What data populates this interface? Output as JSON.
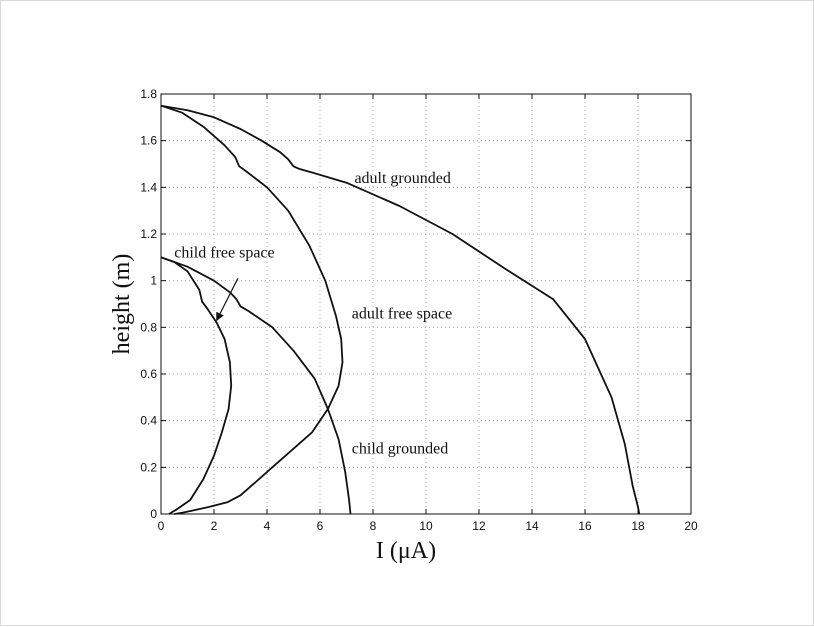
{
  "chart_data": {
    "type": "line",
    "title": "",
    "xlabel": "I (μA)",
    "ylabel": "height  (m)",
    "xlim": [
      0,
      20
    ],
    "ylim": [
      0,
      1.8
    ],
    "xticks": [
      0,
      2,
      4,
      6,
      8,
      10,
      12,
      14,
      16,
      18,
      20
    ],
    "yticks": [
      0,
      0.2,
      0.4,
      0.6,
      0.8,
      1,
      1.2,
      1.4,
      1.6,
      1.8
    ],
    "xtick_labels": [
      "0",
      "2",
      "4",
      "6",
      "8",
      "10",
      "12",
      "14",
      "16",
      "18",
      "20"
    ],
    "ytick_labels": [
      "0",
      "0.2",
      "0.4",
      "0.6",
      "0.8",
      "1",
      "1.2",
      "1.4",
      "1.6",
      "1.8"
    ],
    "grid": true,
    "series": [
      {
        "name": "adult grounded",
        "x": [
          0,
          1,
          2,
          3,
          3.8,
          4.5,
          4.8,
          5.0,
          5.2,
          5.8,
          7,
          9,
          11,
          13,
          14.8,
          16.0,
          17.0,
          17.5,
          17.8,
          18.0,
          18.05
        ],
        "y": [
          1.75,
          1.73,
          1.7,
          1.65,
          1.6,
          1.55,
          1.52,
          1.49,
          1.48,
          1.46,
          1.42,
          1.32,
          1.2,
          1.05,
          0.92,
          0.75,
          0.5,
          0.3,
          0.12,
          0.03,
          0
        ]
      },
      {
        "name": "adult free space",
        "x": [
          0,
          0.8,
          1.6,
          2.4,
          2.8,
          2.95,
          3.2,
          4.0,
          4.8,
          5.6,
          6.2,
          6.6,
          6.8,
          6.85,
          6.7,
          6.3,
          5.7,
          5.0,
          4.2,
          3.5,
          3.0,
          2.5,
          1.8,
          1.2,
          0.8,
          0.5
        ],
        "y": [
          1.75,
          1.72,
          1.66,
          1.58,
          1.53,
          1.49,
          1.47,
          1.4,
          1.3,
          1.15,
          1.0,
          0.85,
          0.75,
          0.65,
          0.55,
          0.45,
          0.35,
          0.28,
          0.2,
          0.13,
          0.08,
          0.05,
          0.03,
          0.015,
          0.005,
          0
        ]
      },
      {
        "name": "child grounded",
        "x": [
          0,
          1,
          2,
          2.6,
          2.85,
          3.0,
          3.3,
          4.2,
          5.0,
          5.8,
          6.3,
          6.7,
          6.95,
          7.1,
          7.15
        ],
        "y": [
          1.1,
          1.06,
          1.0,
          0.95,
          0.92,
          0.89,
          0.87,
          0.8,
          0.7,
          0.58,
          0.45,
          0.32,
          0.18,
          0.06,
          0
        ]
      },
      {
        "name": "child free space",
        "x": [
          0,
          0.5,
          1.0,
          1.45,
          1.55,
          1.75,
          2.1,
          2.4,
          2.6,
          2.65,
          2.55,
          2.3,
          2.0,
          1.6,
          1.1,
          0.6,
          0.3
        ],
        "y": [
          1.1,
          1.08,
          1.04,
          0.96,
          0.91,
          0.88,
          0.82,
          0.75,
          0.65,
          0.55,
          0.45,
          0.35,
          0.25,
          0.15,
          0.06,
          0.02,
          0
        ]
      }
    ],
    "annotations": [
      {
        "text": "adult grounded",
        "x": 7.3,
        "y": 1.44
      },
      {
        "text": "adult free space",
        "x": 7.2,
        "y": 0.86
      },
      {
        "text": "child grounded",
        "x": 7.2,
        "y": 0.28
      },
      {
        "text": "child free space",
        "x": 0.5,
        "y": 1.12
      }
    ],
    "arrow": {
      "from": [
        2.9,
        1.01
      ],
      "to": [
        2.1,
        0.83
      ]
    }
  }
}
